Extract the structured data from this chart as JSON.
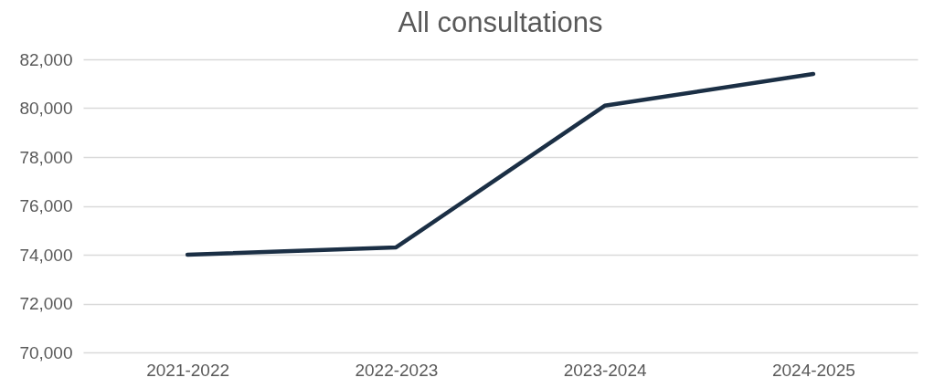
{
  "chart_data": {
    "type": "line",
    "title": "All consultations",
    "categories": [
      "2021-2022",
      "2022-2023",
      "2023-2024",
      "2024-2025"
    ],
    "series": [
      {
        "color": "#1b2f45",
        "values": [
          74000,
          74300,
          80100,
          81400
        ]
      }
    ],
    "ylim": [
      70000,
      82000
    ],
    "yticks": [
      {
        "value": 70000,
        "label": "70,000"
      },
      {
        "value": 72000,
        "label": "72,000"
      },
      {
        "value": 74000,
        "label": "74,000"
      },
      {
        "value": 76000,
        "label": "76,000"
      },
      {
        "value": 78000,
        "label": "78,000"
      },
      {
        "value": 80000,
        "label": "80,000"
      },
      {
        "value": 82000,
        "label": "82,000"
      }
    ],
    "grid": "y",
    "legend": false,
    "marker": "none",
    "line_style": "solid"
  }
}
